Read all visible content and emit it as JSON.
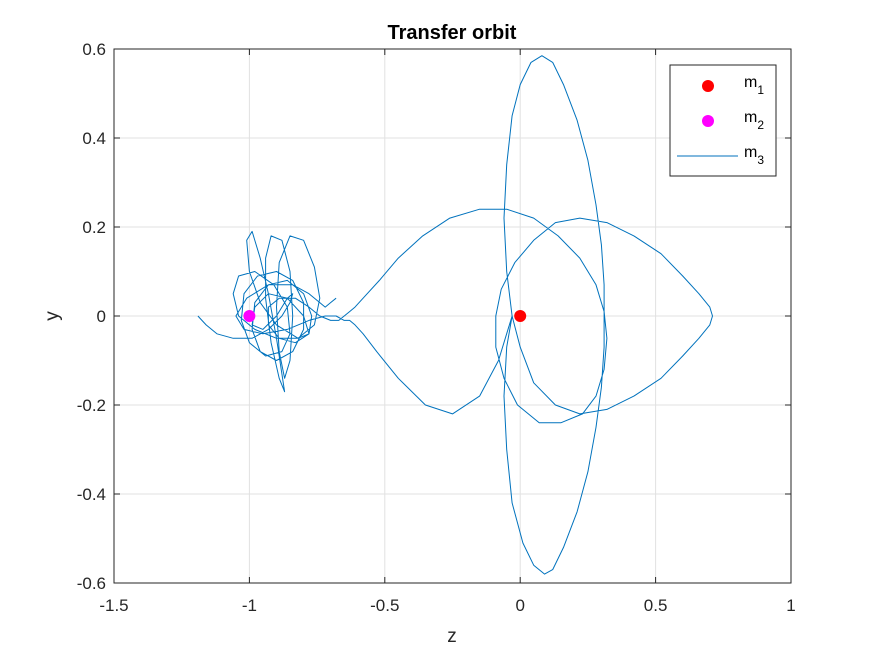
{
  "chart_data": {
    "type": "line",
    "title": "Transfer orbit",
    "xlabel": "z",
    "ylabel": "y",
    "xlim": [
      -1.5,
      1
    ],
    "ylim": [
      -0.6,
      0.6
    ],
    "xticks": [
      "-1.5",
      "-1",
      "-0.5",
      "0",
      "0.5",
      "1"
    ],
    "xtick_values": [
      -1.5,
      -1,
      -0.5,
      0,
      0.5,
      1
    ],
    "yticks": [
      "-0.6",
      "-0.4",
      "-0.2",
      "0",
      "0.2",
      "0.4",
      "0.6"
    ],
    "ytick_values": [
      -0.6,
      -0.4,
      -0.2,
      0,
      0.2,
      0.4,
      0.6
    ],
    "grid": true,
    "legend_position": "top-right",
    "series": [
      {
        "name": "m",
        "name_sub": "1",
        "kind": "scatter",
        "color": "#ff0000",
        "points": [
          [
            0,
            0
          ]
        ]
      },
      {
        "name": "m",
        "name_sub": "2",
        "kind": "scatter",
        "color": "#ff00ff",
        "points": [
          [
            -1,
            0
          ]
        ]
      },
      {
        "name": "m",
        "name_sub": "3",
        "kind": "line",
        "color": "#0072bd",
        "points": [
          [
            -1.19,
            0.0
          ],
          [
            -1.16,
            -0.02
          ],
          [
            -1.12,
            -0.04
          ],
          [
            -1.06,
            -0.05
          ],
          [
            -0.99,
            -0.05
          ],
          [
            -0.93,
            -0.03
          ],
          [
            -0.88,
            0.0
          ],
          [
            -0.85,
            0.03
          ],
          [
            -0.84,
            0.05
          ],
          [
            -0.86,
            0.04
          ],
          [
            -0.9,
            0.0
          ],
          [
            -0.95,
            -0.03
          ],
          [
            -0.99,
            -0.02
          ],
          [
            -0.98,
            0.02
          ],
          [
            -0.93,
            0.05
          ],
          [
            -0.86,
            0.04
          ],
          [
            -0.8,
            0.0
          ],
          [
            -0.78,
            -0.04
          ],
          [
            -0.82,
            -0.05
          ],
          [
            -0.9,
            -0.02
          ],
          [
            -0.96,
            0.03
          ],
          [
            -1.0,
            0.1
          ],
          [
            -1.01,
            0.17
          ],
          [
            -0.99,
            0.19
          ],
          [
            -0.96,
            0.13
          ],
          [
            -0.93,
            0.05
          ],
          [
            -0.9,
            -0.05
          ],
          [
            -0.88,
            -0.13
          ],
          [
            -0.87,
            -0.17
          ],
          [
            -0.89,
            -0.14
          ],
          [
            -0.92,
            -0.06
          ],
          [
            -0.94,
            0.04
          ],
          [
            -0.94,
            0.13
          ],
          [
            -0.92,
            0.18
          ],
          [
            -0.88,
            0.17
          ],
          [
            -0.85,
            0.1
          ],
          [
            -0.84,
            0.0
          ],
          [
            -0.85,
            -0.1
          ],
          [
            -0.87,
            -0.14
          ],
          [
            -0.89,
            -0.08
          ],
          [
            -0.9,
            0.02
          ],
          [
            -0.89,
            0.12
          ],
          [
            -0.85,
            0.18
          ],
          [
            -0.8,
            0.17
          ],
          [
            -0.76,
            0.11
          ],
          [
            -0.74,
            0.04
          ],
          [
            -0.76,
            -0.02
          ],
          [
            -0.82,
            -0.05
          ],
          [
            -0.9,
            -0.05
          ],
          [
            -0.98,
            -0.03
          ],
          [
            -1.04,
            0.0
          ],
          [
            -1.06,
            0.05
          ],
          [
            -1.04,
            0.09
          ],
          [
            -0.98,
            0.1
          ],
          [
            -0.91,
            0.07
          ],
          [
            -0.86,
            0.02
          ],
          [
            -0.85,
            -0.04
          ],
          [
            -0.88,
            -0.08
          ],
          [
            -0.94,
            -0.09
          ],
          [
            -1.0,
            -0.06
          ],
          [
            -1.03,
            -0.01
          ],
          [
            -1.02,
            0.05
          ],
          [
            -0.97,
            0.09
          ],
          [
            -0.9,
            0.1
          ],
          [
            -0.84,
            0.08
          ],
          [
            -0.8,
            0.03
          ],
          [
            -0.8,
            -0.03
          ],
          [
            -0.84,
            -0.08
          ],
          [
            -0.9,
            -0.1
          ],
          [
            -0.96,
            -0.08
          ],
          [
            -0.99,
            -0.03
          ],
          [
            -0.98,
            0.03
          ],
          [
            -0.93,
            0.07
          ],
          [
            -0.86,
            0.08
          ],
          [
            -0.8,
            0.05
          ],
          [
            -0.77,
            0.0
          ],
          [
            -0.78,
            -0.04
          ],
          [
            -0.83,
            -0.06
          ],
          [
            -0.89,
            -0.05
          ],
          [
            -0.93,
            -0.02
          ],
          [
            -0.93,
            0.02
          ],
          [
            -0.89,
            0.04
          ],
          [
            -0.83,
            0.04
          ],
          [
            -0.78,
            0.02
          ],
          [
            -0.74,
            0.0
          ],
          [
            -0.7,
            -0.01
          ],
          [
            -0.67,
            -0.01
          ],
          [
            -0.65,
            0.0
          ],
          [
            -0.63,
            0.01
          ],
          [
            -0.61,
            0.02
          ],
          [
            -0.58,
            0.04
          ],
          [
            -0.52,
            0.08
          ],
          [
            -0.45,
            0.13
          ],
          [
            -0.36,
            0.18
          ],
          [
            -0.26,
            0.22
          ],
          [
            -0.15,
            0.24
          ],
          [
            -0.05,
            0.24
          ],
          [
            0.05,
            0.22
          ],
          [
            0.14,
            0.18
          ],
          [
            0.22,
            0.13
          ],
          [
            0.28,
            0.07
          ],
          [
            0.31,
            0.01
          ],
          [
            0.32,
            -0.05
          ],
          [
            0.31,
            -0.12
          ],
          [
            0.28,
            -0.18
          ],
          [
            0.23,
            -0.22
          ],
          [
            0.15,
            -0.24
          ],
          [
            0.07,
            -0.24
          ],
          [
            -0.01,
            -0.2
          ],
          [
            -0.06,
            -0.14
          ],
          [
            -0.09,
            -0.07
          ],
          [
            -0.09,
            0.0
          ],
          [
            -0.07,
            0.06
          ],
          [
            -0.02,
            0.12
          ],
          [
            0.05,
            0.17
          ],
          [
            0.13,
            0.21
          ],
          [
            0.22,
            0.22
          ],
          [
            0.32,
            0.21
          ],
          [
            0.42,
            0.18
          ],
          [
            0.52,
            0.14
          ],
          [
            0.6,
            0.09
          ],
          [
            0.66,
            0.05
          ],
          [
            0.7,
            0.02
          ],
          [
            0.71,
            0.0
          ],
          [
            0.7,
            -0.02
          ],
          [
            0.66,
            -0.05
          ],
          [
            0.6,
            -0.09
          ],
          [
            0.52,
            -0.14
          ],
          [
            0.42,
            -0.18
          ],
          [
            0.32,
            -0.21
          ],
          [
            0.22,
            -0.22
          ],
          [
            0.13,
            -0.2
          ],
          [
            0.05,
            -0.15
          ],
          [
            0.0,
            -0.07
          ],
          [
            -0.03,
            0.0
          ],
          [
            -0.05,
            0.1
          ],
          [
            -0.06,
            0.22
          ],
          [
            -0.05,
            0.34
          ],
          [
            -0.03,
            0.45
          ],
          [
            0.0,
            0.52
          ],
          [
            0.04,
            0.57
          ],
          [
            0.08,
            0.585
          ],
          [
            0.12,
            0.57
          ],
          [
            0.16,
            0.52
          ],
          [
            0.21,
            0.44
          ],
          [
            0.25,
            0.35
          ],
          [
            0.28,
            0.25
          ],
          [
            0.3,
            0.16
          ],
          [
            0.31,
            0.07
          ],
          [
            0.31,
            0.0
          ],
          [
            0.31,
            -0.07
          ],
          [
            0.3,
            -0.16
          ],
          [
            0.28,
            -0.25
          ],
          [
            0.25,
            -0.35
          ],
          [
            0.21,
            -0.44
          ],
          [
            0.16,
            -0.52
          ],
          [
            0.12,
            -0.57
          ],
          [
            0.09,
            -0.58
          ],
          [
            0.05,
            -0.56
          ],
          [
            0.01,
            -0.51
          ],
          [
            -0.03,
            -0.42
          ],
          [
            -0.05,
            -0.3
          ],
          [
            -0.06,
            -0.18
          ],
          [
            -0.05,
            -0.07
          ],
          [
            -0.03,
            0.0
          ],
          [
            -0.08,
            -0.1
          ],
          [
            -0.15,
            -0.18
          ],
          [
            -0.25,
            -0.22
          ],
          [
            -0.35,
            -0.2
          ],
          [
            -0.45,
            -0.14
          ],
          [
            -0.53,
            -0.08
          ],
          [
            -0.58,
            -0.04
          ],
          [
            -0.61,
            -0.02
          ],
          [
            -0.63,
            -0.01
          ],
          [
            -0.65,
            -0.01
          ],
          [
            -0.68,
            0.0
          ],
          [
            -0.72,
            0.0
          ],
          [
            -0.78,
            -0.01
          ],
          [
            -0.86,
            -0.03
          ],
          [
            -0.95,
            -0.04
          ],
          [
            -1.02,
            -0.03
          ],
          [
            -1.05,
            0.0
          ],
          [
            -1.01,
            0.04
          ],
          [
            -0.93,
            0.07
          ],
          [
            -0.84,
            0.07
          ],
          [
            -0.78,
            0.05
          ],
          [
            -0.74,
            0.03
          ],
          [
            -0.72,
            0.02
          ],
          [
            -0.7,
            0.03
          ],
          [
            -0.68,
            0.04
          ]
        ]
      }
    ]
  }
}
